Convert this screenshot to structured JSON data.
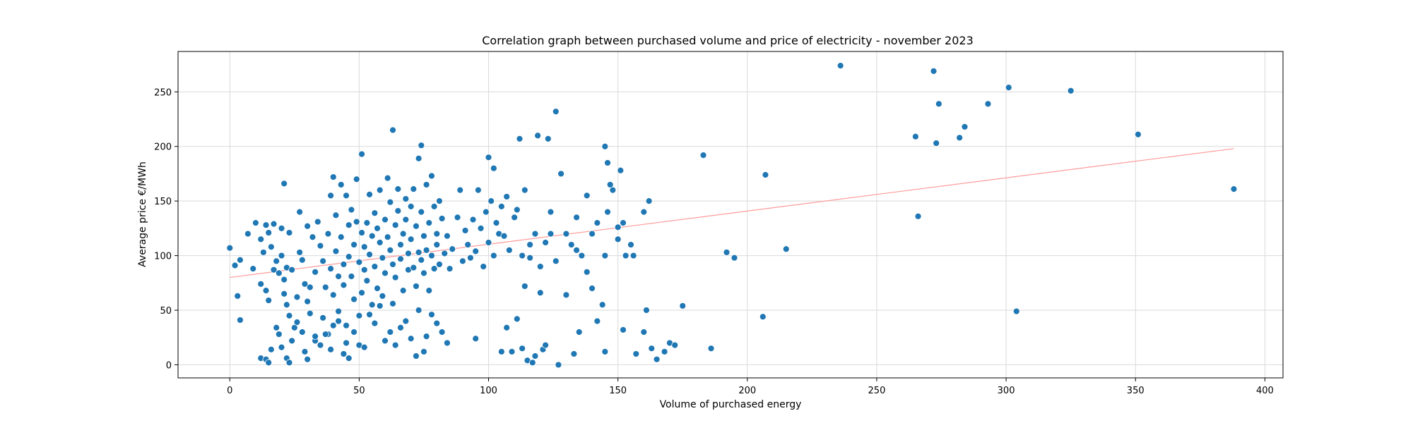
{
  "chart_data": {
    "type": "scatter",
    "title": "Correlation graph between purchased volume and price of electricity - november 2023",
    "xlabel": "Volume of purchased energy",
    "ylabel": "Average price €/MWh",
    "xlim": [
      -20,
      407
    ],
    "ylim": [
      -12,
      287
    ],
    "xticks": [
      0,
      50,
      100,
      150,
      200,
      250,
      300,
      350,
      400
    ],
    "yticks": [
      0,
      50,
      100,
      150,
      200,
      250
    ],
    "grid": true,
    "colors": {
      "points": "#1f77b4",
      "trend": "#ff9a9a",
      "grid": "#d9d9d9"
    },
    "trendline": {
      "x": [
        0,
        388
      ],
      "y": [
        80,
        198
      ]
    },
    "series": [
      {
        "points": [
          [
            0,
            107
          ],
          [
            2,
            91
          ],
          [
            3,
            63
          ],
          [
            4,
            96
          ],
          [
            4,
            41
          ],
          [
            7,
            120
          ],
          [
            9,
            88
          ],
          [
            10,
            130
          ],
          [
            12,
            74
          ],
          [
            12,
            115
          ],
          [
            13,
            103
          ],
          [
            14,
            128
          ],
          [
            14,
            68
          ],
          [
            15,
            59
          ],
          [
            15,
            121
          ],
          [
            16,
            108
          ],
          [
            17,
            129
          ],
          [
            17,
            87
          ],
          [
            18,
            95
          ],
          [
            19,
            84
          ],
          [
            20,
            125
          ],
          [
            20,
            100
          ],
          [
            21,
            78
          ],
          [
            21,
            65
          ],
          [
            22,
            89
          ],
          [
            22,
            55
          ],
          [
            23,
            121
          ],
          [
            23,
            45
          ],
          [
            24,
            87
          ],
          [
            25,
            34
          ],
          [
            26,
            62
          ],
          [
            27,
            103
          ],
          [
            27,
            140
          ],
          [
            28,
            96
          ],
          [
            29,
            74
          ],
          [
            30,
            127
          ],
          [
            30,
            58
          ],
          [
            31,
            71
          ],
          [
            32,
            117
          ],
          [
            33,
            85
          ],
          [
            33,
            22
          ],
          [
            34,
            131
          ],
          [
            35,
            109
          ],
          [
            36,
            95
          ],
          [
            36,
            43
          ],
          [
            37,
            71
          ],
          [
            38,
            120
          ],
          [
            38,
            28
          ],
          [
            39,
            155
          ],
          [
            39,
            88
          ],
          [
            40,
            172
          ],
          [
            40,
            64
          ],
          [
            41,
            137
          ],
          [
            41,
            104
          ],
          [
            42,
            81
          ],
          [
            42,
            49
          ],
          [
            43,
            165
          ],
          [
            43,
            117
          ],
          [
            44,
            92
          ],
          [
            44,
            73
          ],
          [
            45,
            155
          ],
          [
            45,
            36
          ],
          [
            46,
            128
          ],
          [
            46,
            99
          ],
          [
            47,
            142
          ],
          [
            47,
            81
          ],
          [
            48,
            110
          ],
          [
            48,
            60
          ],
          [
            49,
            170
          ],
          [
            49,
            131
          ],
          [
            50,
            94
          ],
          [
            50,
            45
          ],
          [
            51,
            121
          ],
          [
            51,
            66
          ],
          [
            52,
            108
          ],
          [
            52,
            87
          ],
          [
            53,
            130
          ],
          [
            53,
            77
          ],
          [
            54,
            156
          ],
          [
            54,
            101
          ],
          [
            55,
            118
          ],
          [
            55,
            55
          ],
          [
            56,
            139
          ],
          [
            56,
            90
          ],
          [
            57,
            125
          ],
          [
            57,
            70
          ],
          [
            58,
            160
          ],
          [
            58,
            112
          ],
          [
            59,
            98
          ],
          [
            59,
            63
          ],
          [
            60,
            133
          ],
          [
            60,
            84
          ],
          [
            61,
            171
          ],
          [
            61,
            117
          ],
          [
            62,
            149
          ],
          [
            62,
            105
          ],
          [
            63,
            92
          ],
          [
            63,
            56
          ],
          [
            64,
            128
          ],
          [
            64,
            80
          ],
          [
            65,
            161
          ],
          [
            65,
            141
          ],
          [
            66,
            110
          ],
          [
            66,
            97
          ],
          [
            67,
            120
          ],
          [
            67,
            68
          ],
          [
            68,
            152
          ],
          [
            68,
            133
          ],
          [
            69,
            102
          ],
          [
            69,
            87
          ],
          [
            70,
            145
          ],
          [
            70,
            115
          ],
          [
            71,
            161
          ],
          [
            71,
            89
          ],
          [
            72,
            127
          ],
          [
            72,
            72
          ],
          [
            73,
            103
          ],
          [
            73,
            50
          ],
          [
            74,
            140
          ],
          [
            74,
            96
          ],
          [
            75,
            118
          ],
          [
            75,
            84
          ],
          [
            76,
            165
          ],
          [
            76,
            105
          ],
          [
            77,
            130
          ],
          [
            77,
            68
          ],
          [
            78,
            173
          ],
          [
            78,
            100
          ],
          [
            79,
            145
          ],
          [
            79,
            88
          ],
          [
            80,
            120
          ],
          [
            80,
            110
          ],
          [
            81,
            150
          ],
          [
            81,
            92
          ],
          [
            82,
            134
          ],
          [
            83,
            102
          ],
          [
            84,
            118
          ],
          [
            85,
            88
          ],
          [
            86,
            106
          ],
          [
            88,
            135
          ],
          [
            89,
            160
          ],
          [
            90,
            95
          ],
          [
            91,
            123
          ],
          [
            92,
            110
          ],
          [
            93,
            98
          ],
          [
            94,
            133
          ],
          [
            95,
            104
          ],
          [
            96,
            160
          ],
          [
            97,
            125
          ],
          [
            98,
            90
          ],
          [
            99,
            140
          ],
          [
            100,
            112
          ],
          [
            101,
            150
          ],
          [
            102,
            100
          ],
          [
            103,
            130
          ],
          [
            104,
            120
          ],
          [
            105,
            145
          ],
          [
            106,
            118
          ],
          [
            107,
            154
          ],
          [
            108,
            105
          ],
          [
            110,
            135
          ],
          [
            111,
            142
          ],
          [
            113,
            100
          ],
          [
            114,
            160
          ],
          [
            116,
            110
          ],
          [
            118,
            120
          ],
          [
            120,
            90
          ],
          [
            122,
            112
          ],
          [
            124,
            140
          ],
          [
            126,
            95
          ],
          [
            128,
            175
          ],
          [
            130,
            120
          ],
          [
            132,
            110
          ],
          [
            134,
            135
          ],
          [
            136,
            100
          ],
          [
            138,
            155
          ],
          [
            140,
            120
          ],
          [
            142,
            130
          ],
          [
            145,
            100
          ],
          [
            146,
            140
          ],
          [
            148,
            160
          ],
          [
            150,
            115
          ],
          [
            152,
            130
          ],
          [
            155,
            110
          ],
          [
            160,
            140
          ],
          [
            162,
            150
          ],
          [
            12,
            6
          ],
          [
            14,
            5
          ],
          [
            15,
            2
          ],
          [
            16,
            14
          ],
          [
            18,
            34
          ],
          [
            19,
            28
          ],
          [
            20,
            16
          ],
          [
            21,
            166
          ],
          [
            22,
            6
          ],
          [
            23,
            2
          ],
          [
            24,
            22
          ],
          [
            26,
            39
          ],
          [
            28,
            30
          ],
          [
            29,
            12
          ],
          [
            30,
            5
          ],
          [
            31,
            47
          ],
          [
            33,
            26
          ],
          [
            35,
            18
          ],
          [
            37,
            28
          ],
          [
            39,
            14
          ],
          [
            40,
            36
          ],
          [
            42,
            40
          ],
          [
            44,
            10
          ],
          [
            45,
            20
          ],
          [
            46,
            6
          ],
          [
            48,
            30
          ],
          [
            50,
            18
          ],
          [
            51,
            193
          ],
          [
            52,
            16
          ],
          [
            54,
            46
          ],
          [
            56,
            38
          ],
          [
            58,
            54
          ],
          [
            60,
            22
          ],
          [
            62,
            30
          ],
          [
            63,
            215
          ],
          [
            64,
            18
          ],
          [
            66,
            34
          ],
          [
            68,
            40
          ],
          [
            70,
            24
          ],
          [
            72,
            8
          ],
          [
            73,
            189
          ],
          [
            74,
            201
          ],
          [
            75,
            12
          ],
          [
            76,
            26
          ],
          [
            78,
            46
          ],
          [
            80,
            38
          ],
          [
            82,
            30
          ],
          [
            84,
            20
          ],
          [
            95,
            24
          ],
          [
            100,
            190
          ],
          [
            102,
            180
          ],
          [
            105,
            12
          ],
          [
            107,
            34
          ],
          [
            109,
            12
          ],
          [
            111,
            42
          ],
          [
            112,
            207
          ],
          [
            113,
            15
          ],
          [
            114,
            72
          ],
          [
            115,
            4
          ],
          [
            116,
            98
          ],
          [
            117,
            2
          ],
          [
            118,
            8
          ],
          [
            119,
            210
          ],
          [
            120,
            66
          ],
          [
            121,
            14
          ],
          [
            122,
            18
          ],
          [
            123,
            207
          ],
          [
            124,
            120
          ],
          [
            126,
            232
          ],
          [
            127,
            0
          ],
          [
            130,
            64
          ],
          [
            133,
            10
          ],
          [
            134,
            105
          ],
          [
            135,
            30
          ],
          [
            138,
            85
          ],
          [
            140,
            70
          ],
          [
            142,
            40
          ],
          [
            144,
            55
          ],
          [
            145,
            12
          ],
          [
            145,
            200
          ],
          [
            146,
            185
          ],
          [
            147,
            165
          ],
          [
            150,
            126
          ],
          [
            151,
            178
          ],
          [
            152,
            32
          ],
          [
            153,
            100
          ],
          [
            156,
            100
          ],
          [
            157,
            10
          ],
          [
            160,
            30
          ],
          [
            161,
            50
          ],
          [
            163,
            15
          ],
          [
            165,
            5
          ],
          [
            168,
            12
          ],
          [
            170,
            20
          ],
          [
            172,
            18
          ],
          [
            175,
            54
          ],
          [
            183,
            192
          ],
          [
            186,
            15
          ],
          [
            192,
            103
          ],
          [
            195,
            98
          ],
          [
            206,
            44
          ],
          [
            207,
            174
          ],
          [
            215,
            106
          ],
          [
            236,
            274
          ],
          [
            265,
            209
          ],
          [
            266,
            136
          ],
          [
            272,
            269
          ],
          [
            273,
            203
          ],
          [
            274,
            239
          ],
          [
            282,
            208
          ],
          [
            284,
            218
          ],
          [
            293,
            239
          ],
          [
            301,
            254
          ],
          [
            304,
            49
          ],
          [
            325,
            251
          ],
          [
            351,
            211
          ],
          [
            388,
            161
          ]
        ]
      }
    ]
  }
}
